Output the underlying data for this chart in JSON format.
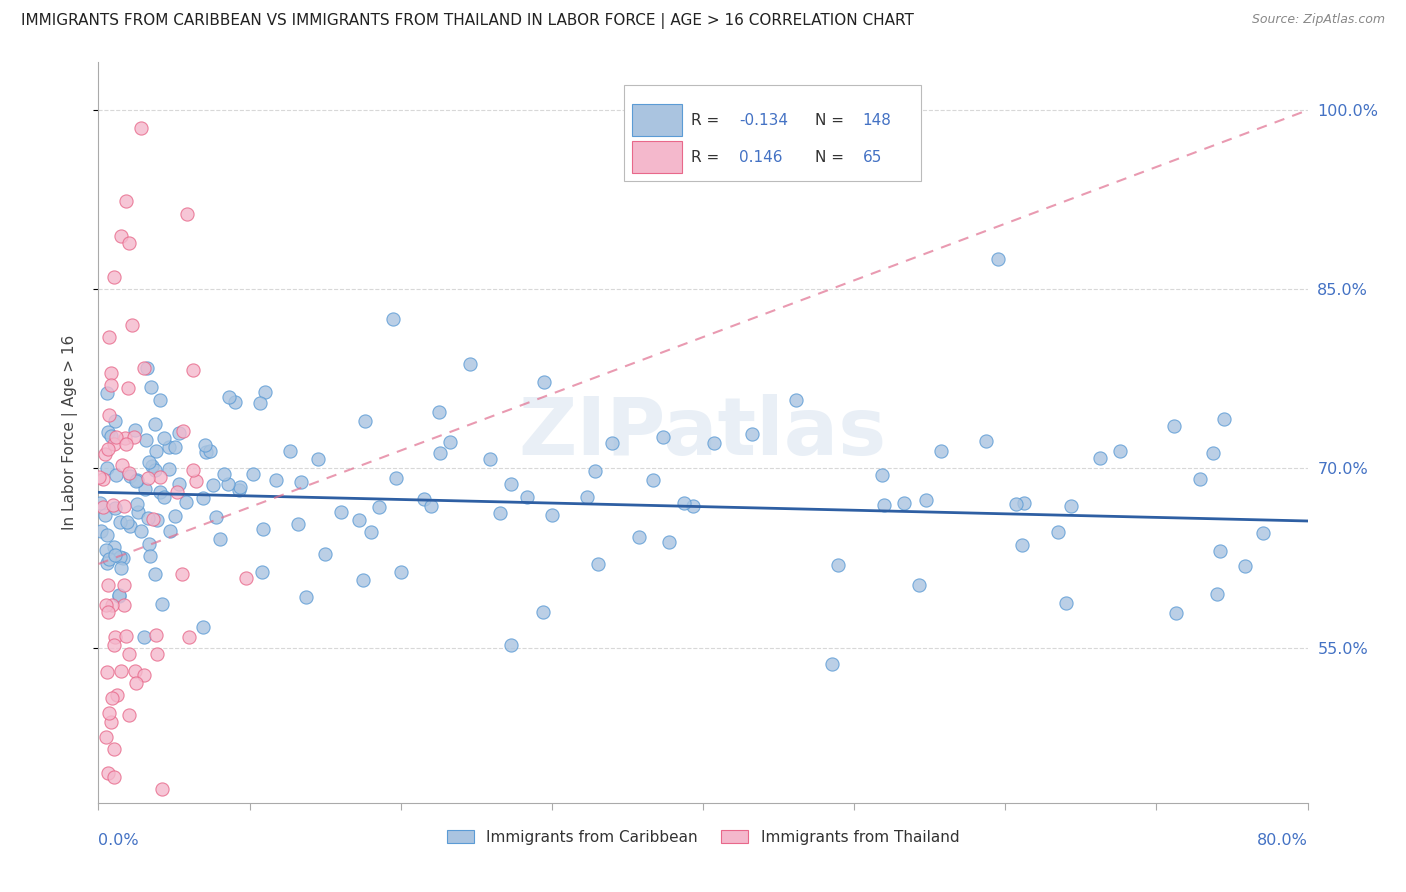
{
  "title": "IMMIGRANTS FROM CARIBBEAN VS IMMIGRANTS FROM THAILAND IN LABOR FORCE | AGE > 16 CORRELATION CHART",
  "source": "Source: ZipAtlas.com",
  "ylabel": "In Labor Force | Age > 16",
  "xmin": 0.0,
  "xmax": 0.8,
  "ymin": 0.42,
  "ymax": 1.04,
  "yticks": [
    0.55,
    0.7,
    0.85,
    1.0
  ],
  "ytick_labels": [
    "55.0%",
    "70.0%",
    "85.0%",
    "100.0%"
  ],
  "xtick_left_label": "0.0%",
  "xtick_right_label": "80.0%",
  "caribbean_color": "#aac4e0",
  "caribbean_edge": "#5b9bd5",
  "thailand_color": "#f4b8cc",
  "thailand_edge": "#e8688a",
  "caribbean_R": -0.134,
  "caribbean_N": 148,
  "thailand_R": 0.146,
  "thailand_N": 65,
  "carib_line_color": "#2e5fa3",
  "thai_line_color": "#e07090",
  "watermark": "ZIPatlas",
  "background_color": "#ffffff",
  "grid_color": "#d8d8d8",
  "title_color": "#222222",
  "axis_tick_color": "#4472c4",
  "legend_text_color": "#333333",
  "legend_value_color": "#4472c4",
  "carib_trendline_x0": 0.0,
  "carib_trendline_x1": 0.8,
  "carib_trendline_y0": 0.68,
  "carib_trendline_y1": 0.656,
  "thai_trendline_x0": 0.0,
  "thai_trendline_x1": 0.8,
  "thai_trendline_y0": 0.62,
  "thai_trendline_y1": 1.0
}
